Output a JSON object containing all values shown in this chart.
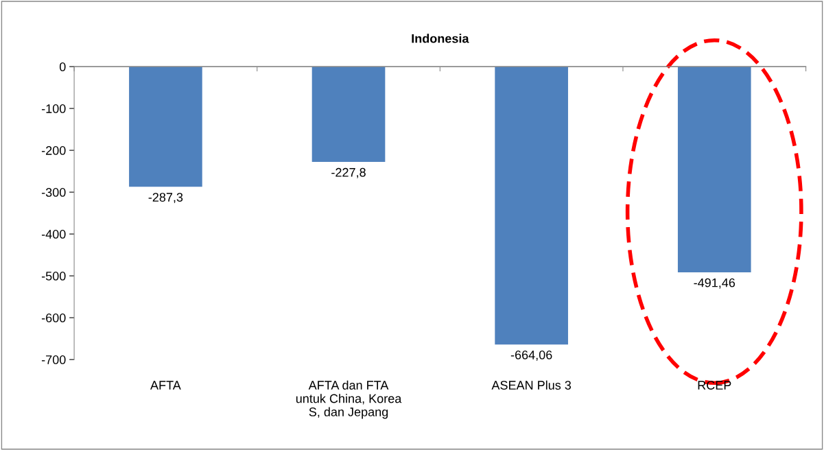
{
  "chart_data": {
    "type": "bar",
    "title": "Indonesia",
    "categories": [
      "AFTA",
      "AFTA dan FTA\nuntuk China, Korea\nS, dan Jepang",
      "ASEAN Plus 3",
      "RCEP"
    ],
    "values": [
      -287.3,
      -227.8,
      -664.06,
      -491.46
    ],
    "value_labels": [
      "-287,3",
      "-227,8",
      "-664,06",
      "-491,46"
    ],
    "color": "#4f81bd",
    "ylim": [
      -700,
      0
    ],
    "yticks": [
      0,
      -100,
      -200,
      -300,
      -400,
      -500,
      -600,
      -700
    ],
    "grid": false,
    "legend": false
  }
}
